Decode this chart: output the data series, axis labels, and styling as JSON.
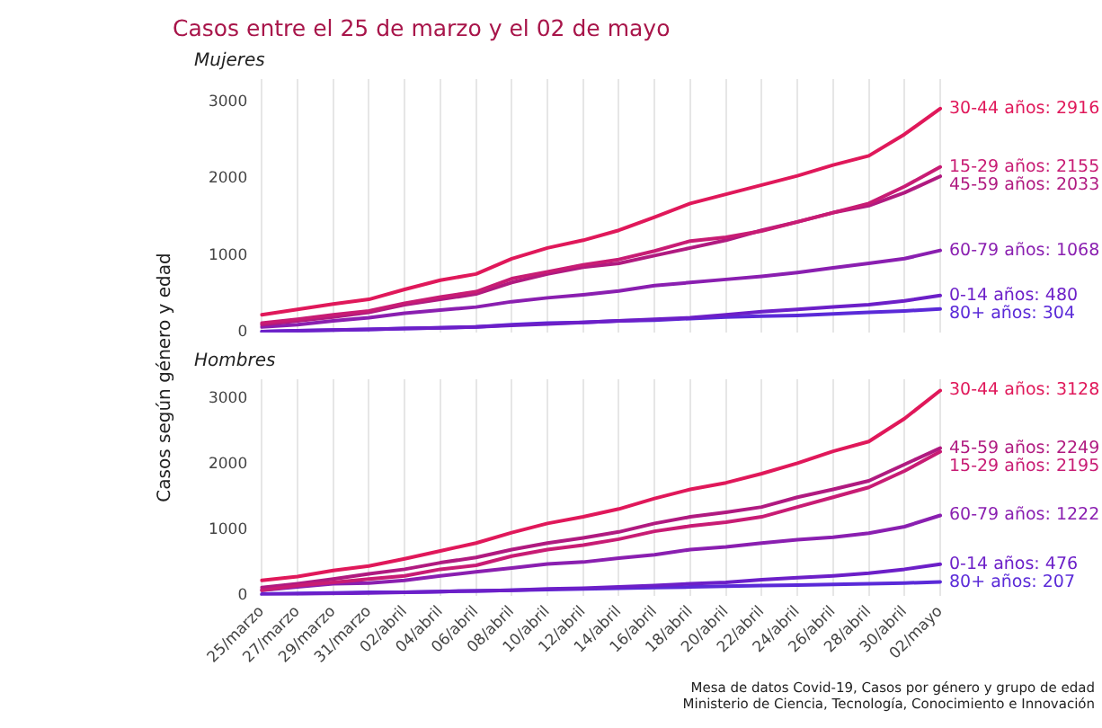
{
  "chart_data": [
    {
      "type": "line",
      "title": "Casos entre el 25 de marzo y el 02 de mayo",
      "subtitle": "Mujeres",
      "ylabel": "Casos según género y edad",
      "categories": [
        null,
        null,
        null,
        null,
        null,
        null,
        null,
        null,
        null,
        null,
        null,
        null,
        null,
        null,
        null,
        null,
        null,
        null,
        null,
        null
      ],
      "series": [
        {
          "color": "#e0185a",
          "values": [
            230,
            300,
            370,
            430,
            560,
            680,
            760,
            960,
            1100,
            1200,
            1330,
            1500,
            1680,
            1800,
            1920,
            2040,
            2180,
            2300,
            2580,
            2916
          ],
          "value_labels": [
            null,
            null,
            null,
            null,
            null,
            null,
            null,
            null,
            null,
            null,
            null,
            null,
            null,
            null,
            null,
            null,
            null,
            null,
            null,
            "30-44 años: 2916"
          ]
        },
        {
          "color": "#c81c74",
          "values": [
            120,
            170,
            230,
            280,
            380,
            460,
            530,
            700,
            790,
            880,
            950,
            1060,
            1190,
            1240,
            1320,
            1440,
            1560,
            1680,
            1900,
            2155
          ],
          "value_labels": [
            null,
            null,
            null,
            null,
            null,
            null,
            null,
            null,
            null,
            null,
            null,
            null,
            null,
            null,
            null,
            null,
            null,
            null,
            null,
            "15-29 años: 2155"
          ]
        },
        {
          "color": "#b01a80",
          "values": [
            100,
            150,
            200,
            260,
            360,
            430,
            500,
            650,
            760,
            850,
            900,
            1000,
            1100,
            1200,
            1330,
            1440,
            1560,
            1650,
            1820,
            2033
          ],
          "value_labels": [
            null,
            null,
            null,
            null,
            null,
            null,
            null,
            null,
            null,
            null,
            null,
            null,
            null,
            null,
            null,
            null,
            null,
            null,
            null,
            "45-59 años: 2033"
          ]
        },
        {
          "color": "#8a1fb0",
          "values": [
            70,
            100,
            150,
            190,
            250,
            290,
            330,
            400,
            450,
            490,
            540,
            610,
            650,
            690,
            730,
            780,
            840,
            900,
            960,
            1068
          ],
          "value_labels": [
            null,
            null,
            null,
            null,
            null,
            null,
            null,
            null,
            null,
            null,
            null,
            null,
            null,
            null,
            null,
            null,
            null,
            null,
            null,
            "60-79 años: 1068"
          ]
        },
        {
          "color": "#6c1fc8",
          "values": [
            10,
            20,
            30,
            40,
            50,
            60,
            70,
            90,
            110,
            130,
            150,
            170,
            190,
            230,
            270,
            300,
            330,
            360,
            410,
            480
          ],
          "value_labels": [
            null,
            null,
            null,
            null,
            null,
            null,
            null,
            null,
            null,
            null,
            null,
            null,
            null,
            null,
            null,
            null,
            null,
            null,
            null,
            "0-14 años: 480"
          ]
        },
        {
          "color": "#5a2ad8",
          "values": [
            10,
            20,
            30,
            40,
            50,
            60,
            70,
            100,
            120,
            130,
            150,
            160,
            180,
            200,
            210,
            220,
            240,
            260,
            280,
            304
          ],
          "value_labels": [
            null,
            null,
            null,
            null,
            null,
            null,
            null,
            null,
            null,
            null,
            null,
            null,
            null,
            null,
            null,
            null,
            null,
            null,
            null,
            "80+ años: 304"
          ]
        }
      ],
      "ylim": [
        0,
        3300
      ],
      "yticks": [
        0,
        1000,
        2000,
        3000
      ],
      "grid": "x",
      "legend": false,
      "tick_labels": "y",
      "line_style": "solid",
      "marker": "none"
    },
    {
      "type": "line",
      "subtitle": "Hombres",
      "categories": [
        "25/marzo",
        "27/marzo",
        "29/marzo",
        "31/marzo",
        "02/abril",
        "04/abril",
        "06/abril",
        "08/abril",
        "10/abril",
        "12/abril",
        "14/abril",
        "16/abril",
        "18/abril",
        "20/abril",
        "22/abril",
        "24/abril",
        "26/abril",
        "28/abril",
        "30/abril",
        "02/mayo"
      ],
      "series": [
        {
          "color": "#e0185a",
          "values": [
            230,
            290,
            380,
            450,
            560,
            680,
            800,
            960,
            1100,
            1200,
            1320,
            1480,
            1620,
            1720,
            1860,
            2020,
            2200,
            2350,
            2700,
            3128
          ],
          "value_labels": [
            null,
            null,
            null,
            null,
            null,
            null,
            null,
            null,
            null,
            null,
            null,
            null,
            null,
            null,
            null,
            null,
            null,
            null,
            null,
            "30-44 años: 3128"
          ]
        },
        {
          "color": "#c81c74",
          "values": [
            80,
            150,
            200,
            250,
            300,
            400,
            460,
            600,
            700,
            770,
            860,
            980,
            1060,
            1120,
            1200,
            1350,
            1500,
            1650,
            1900,
            2195
          ],
          "value_labels": [
            null,
            null,
            null,
            null,
            null,
            null,
            null,
            null,
            null,
            null,
            null,
            null,
            null,
            null,
            null,
            null,
            null,
            null,
            null,
            "15-29 años: 2195"
          ]
        },
        {
          "color": "#b01a80",
          "values": [
            120,
            180,
            250,
            330,
            400,
            500,
            580,
            700,
            800,
            880,
            970,
            1100,
            1200,
            1270,
            1350,
            1500,
            1620,
            1750,
            2000,
            2249
          ],
          "value_labels": [
            null,
            null,
            null,
            null,
            null,
            null,
            null,
            null,
            null,
            null,
            null,
            null,
            null,
            null,
            null,
            null,
            null,
            null,
            null,
            "45-59 años: 2249"
          ]
        },
        {
          "color": "#8a1fb0",
          "values": [
            80,
            130,
            180,
            190,
            230,
            300,
            360,
            420,
            480,
            510,
            570,
            620,
            700,
            740,
            800,
            850,
            890,
            950,
            1050,
            1222
          ],
          "value_labels": [
            null,
            null,
            null,
            null,
            null,
            null,
            null,
            null,
            null,
            null,
            null,
            null,
            null,
            null,
            null,
            null,
            null,
            null,
            null,
            "60-79 años: 1222"
          ]
        },
        {
          "color": "#6c1fc8",
          "values": [
            10,
            20,
            30,
            40,
            50,
            60,
            70,
            80,
            100,
            110,
            130,
            150,
            180,
            200,
            240,
            270,
            300,
            340,
            400,
            476
          ],
          "value_labels": [
            null,
            null,
            null,
            null,
            null,
            null,
            null,
            null,
            null,
            null,
            null,
            null,
            null,
            null,
            null,
            null,
            null,
            null,
            null,
            "0-14 años: 476"
          ]
        },
        {
          "color": "#5a2ad8",
          "values": [
            20,
            30,
            40,
            50,
            50,
            60,
            70,
            80,
            90,
            100,
            110,
            120,
            130,
            140,
            150,
            160,
            170,
            180,
            190,
            207
          ],
          "value_labels": [
            null,
            null,
            null,
            null,
            null,
            null,
            null,
            null,
            null,
            null,
            null,
            null,
            null,
            null,
            null,
            null,
            null,
            null,
            null,
            "80+ años: 207"
          ]
        }
      ],
      "ylim": [
        0,
        3300
      ],
      "yticks": [
        0,
        1000,
        2000,
        3000
      ],
      "grid": "x",
      "legend": false,
      "line_style": "solid",
      "marker": "none",
      "annotations": [
        "Mesa de datos Covid-19, Casos por género y grupo de edad",
        "Ministerio de Ciencia, Tecnología, Conocimiento e Innovación"
      ]
    }
  ]
}
